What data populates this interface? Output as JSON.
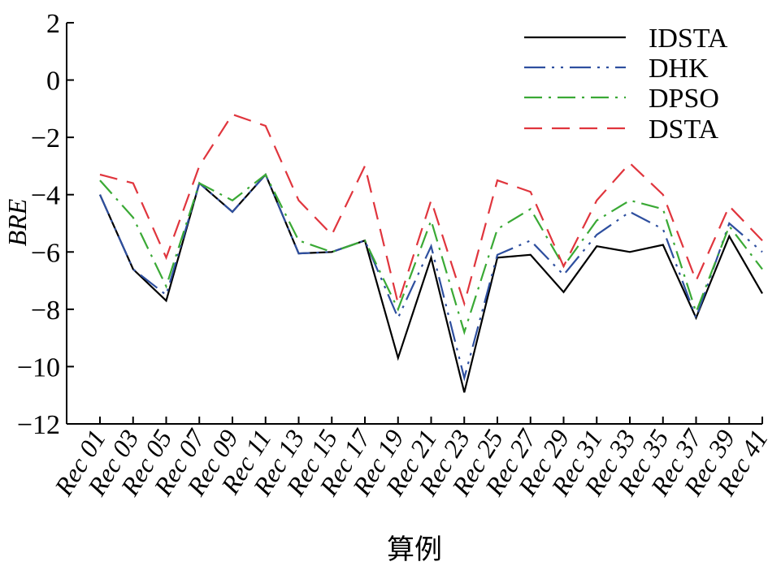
{
  "chart_data": {
    "type": "line",
    "xlabel": "算例",
    "ylabel": "BRE",
    "ylim": [
      -12,
      2
    ],
    "yticks": [
      2,
      0,
      -2,
      -4,
      -6,
      -8,
      -10,
      -12
    ],
    "ytick_labels": [
      "2",
      "0",
      "−2",
      "−4",
      "−6",
      "−8",
      "−10",
      "−12"
    ],
    "categories": [
      "Rec 01",
      "Rec 03",
      "Rec 05",
      "Rec 07",
      "Rec 09",
      "Rec 11",
      "Rec 13",
      "Rec 15",
      "Rec 17",
      "Rec 19",
      "Rec 21",
      "Rec 23",
      "Rec 25",
      "Rec 27",
      "Rec 29",
      "Rec 31",
      "Rec 33",
      "Rec 35",
      "Rec 37",
      "Rec 39",
      "Rec 41"
    ],
    "grid": false,
    "legend_position": "top-right",
    "series": [
      {
        "name": "IDSTA",
        "color": "#000000",
        "dash": "solid",
        "values": [
          -4.0,
          -6.6,
          -7.7,
          -3.6,
          -4.6,
          -3.3,
          -6.05,
          -6.0,
          -5.6,
          -9.7,
          -6.2,
          -10.9,
          -6.2,
          -6.1,
          -7.4,
          -5.8,
          -6.0,
          -5.75,
          -8.3,
          -5.45,
          -7.45
        ]
      },
      {
        "name": "DHK",
        "color": "#2e4f9f",
        "dash": "dash-dot-dot",
        "values": [
          -4.0,
          -6.6,
          -7.5,
          -3.6,
          -4.6,
          -3.3,
          -6.05,
          -6.0,
          -5.6,
          -8.3,
          -5.8,
          -10.4,
          -6.1,
          -5.6,
          -6.8,
          -5.4,
          -4.6,
          -5.2,
          -8.3,
          -5.0,
          -6.0
        ]
      },
      {
        "name": "DPSO",
        "color": "#3aa935",
        "dash": "dash-dot",
        "values": [
          -3.5,
          -4.8,
          -7.2,
          -3.6,
          -4.2,
          -3.3,
          -5.6,
          -6.0,
          -5.6,
          -8.0,
          -4.9,
          -8.8,
          -5.2,
          -4.5,
          -6.5,
          -4.9,
          -4.2,
          -4.5,
          -8.1,
          -5.1,
          -6.6
        ]
      },
      {
        "name": "DSTA",
        "color": "#e0353d",
        "dash": "dashed",
        "values": [
          -3.3,
          -3.6,
          -6.2,
          -3.0,
          -1.2,
          -1.6,
          -4.2,
          -5.4,
          -3.0,
          -7.8,
          -4.2,
          -7.8,
          -3.5,
          -3.9,
          -6.5,
          -4.2,
          -2.9,
          -4.0,
          -7.0,
          -4.4,
          -5.6
        ]
      }
    ]
  }
}
